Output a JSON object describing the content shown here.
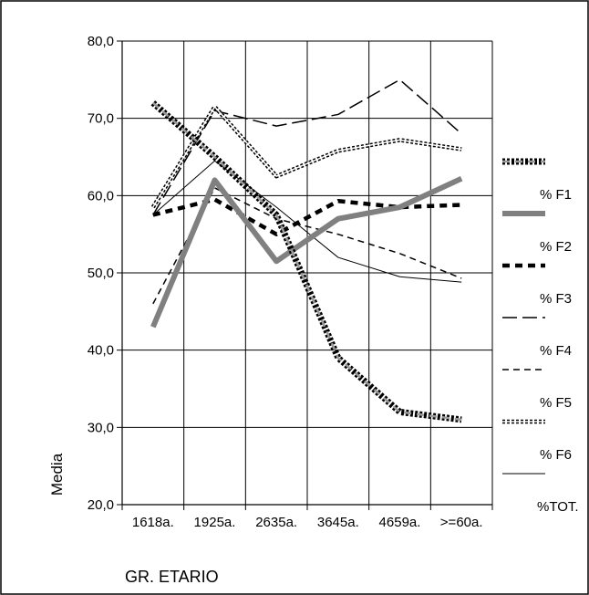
{
  "chart_data": {
    "type": "line",
    "xlabel": "GR. ETARIO",
    "ylabel": "Media",
    "ylim": [
      20,
      80
    ],
    "yticks": [
      "20,0",
      "30,0",
      "40,0",
      "50,0",
      "60,0",
      "70,0",
      "80,0"
    ],
    "categories": [
      "1618a.",
      "1925a.",
      "2635a.",
      "3645a.",
      "4659a.",
      ">=60a."
    ],
    "grid": true,
    "legend_position": "right",
    "series": [
      {
        "name": "% F1",
        "values": [
          72.0,
          65.0,
          57.5,
          39.0,
          32.0,
          31.0
        ],
        "color": "#000000",
        "style": "thick-dashed"
      },
      {
        "name": "% F2",
        "values": [
          43.0,
          62.0,
          51.5,
          57.0,
          58.5,
          62.2
        ],
        "color": "#808080",
        "style": "thick-solid"
      },
      {
        "name": "% F3",
        "values": [
          57.5,
          59.5,
          55.0,
          59.3,
          58.5,
          58.8
        ],
        "color": "#000000",
        "style": "dotted"
      },
      {
        "name": "% F4",
        "values": [
          57.5,
          71.0,
          69.0,
          70.5,
          75.0,
          68.0
        ],
        "color": "#000000",
        "style": "long-dash"
      },
      {
        "name": "% F5",
        "values": [
          46.0,
          61.0,
          57.0,
          55.0,
          52.5,
          49.3
        ],
        "color": "#000000",
        "style": "short-dash"
      },
      {
        "name": "% F6",
        "values": [
          58.5,
          71.5,
          62.5,
          65.8,
          67.2,
          66.0
        ],
        "color": "#000000",
        "style": "double"
      },
      {
        "name": "%TOT.",
        "values": [
          57.5,
          64.5,
          58.5,
          52.0,
          49.5,
          48.8
        ],
        "color": "#000000",
        "style": "thin"
      }
    ]
  }
}
